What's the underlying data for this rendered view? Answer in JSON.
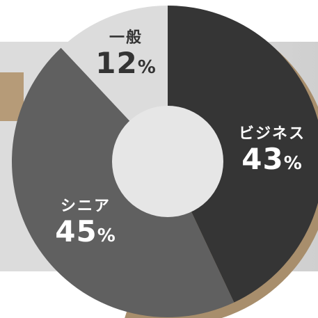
{
  "chart_data": {
    "type": "pie",
    "style": "donut",
    "categories": [
      "ビジネス",
      "シニア",
      "一般"
    ],
    "values": [
      43,
      45,
      12
    ],
    "unit": "%",
    "colors": [
      "#353535",
      "#606060",
      "#dcdcdc"
    ],
    "title": "",
    "legend": "none",
    "labels": [
      {
        "name": "一般",
        "value": "12",
        "unit": "%"
      },
      {
        "name": "ビジネス",
        "value": "43",
        "unit": "%"
      },
      {
        "name": "シニア",
        "value": "45",
        "unit": "%"
      }
    ]
  },
  "colors": {
    "background": "#d9d9d9",
    "accent_gold": "#b69b78",
    "center_hole": "#e6e6e6"
  }
}
